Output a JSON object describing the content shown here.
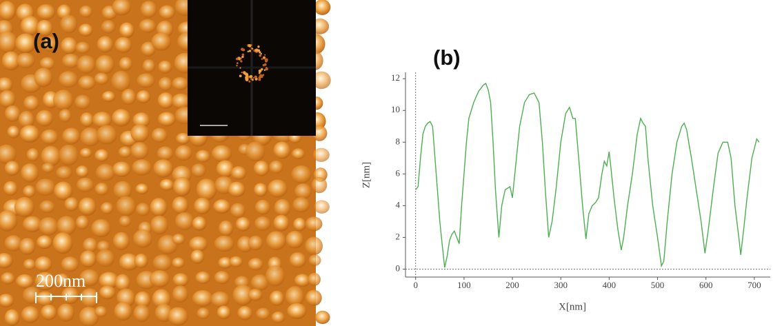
{
  "panels": {
    "a": "(a)",
    "b": "(b)",
    "scale_bar": "200nm"
  },
  "chart_data": {
    "type": "line",
    "x_label": "X[nm]",
    "y_label": "Z[nm]",
    "x": [
      0,
      5,
      10,
      15,
      20,
      25,
      30,
      35,
      40,
      45,
      50,
      55,
      60,
      65,
      70,
      75,
      80,
      85,
      90,
      95,
      100,
      105,
      110,
      120,
      130,
      140,
      145,
      150,
      155,
      160,
      165,
      172,
      178,
      185,
      195,
      200,
      205,
      215,
      225,
      235,
      245,
      255,
      262,
      268,
      275,
      282,
      290,
      300,
      310,
      318,
      325,
      330,
      337,
      345,
      352,
      358,
      365,
      372,
      378,
      385,
      390,
      395,
      400,
      405,
      410,
      418,
      425,
      430,
      438,
      448,
      458,
      465,
      470,
      475,
      480,
      490,
      500,
      508,
      513,
      520,
      530,
      540,
      550,
      555,
      560,
      570,
      580,
      590,
      598,
      605,
      615,
      625,
      635,
      645,
      652,
      660,
      668,
      672,
      678,
      685,
      695,
      705,
      710
    ],
    "series": [
      {
        "color": "#4caf50",
        "values": [
          5,
          5.2,
          7,
          8.5,
          9,
          9.2,
          9.3,
          9,
          7,
          5,
          3,
          1.5,
          0.1,
          0.8,
          1.8,
          2.2,
          2.4,
          2,
          1.6,
          4,
          6,
          8,
          9.5,
          10.5,
          11.2,
          11.6,
          11.7,
          11.3,
          10.5,
          8,
          5,
          2,
          4,
          5,
          5.2,
          4.5,
          6,
          9,
          10.5,
          11,
          11.1,
          10.5,
          8,
          5,
          2,
          3,
          5,
          8,
          9.8,
          10.2,
          9.5,
          9.5,
          7,
          4,
          1.9,
          3.5,
          4,
          4.2,
          4.5,
          6,
          6.8,
          6.5,
          7.4,
          6,
          4.5,
          2.5,
          1.2,
          2,
          4,
          6,
          8.5,
          9.5,
          9.2,
          9,
          7,
          4,
          2,
          0.2,
          0.5,
          3,
          6,
          8,
          9,
          9.2,
          8.8,
          7,
          5,
          3,
          1,
          2.5,
          5,
          7.3,
          8,
          8,
          7,
          4,
          2,
          0.9,
          2.5,
          4.5,
          7,
          8.2,
          8
        ]
      }
    ],
    "xlim": [
      -21,
      733
    ],
    "ylim": [
      -0.5,
      12.4
    ],
    "xticks": [
      0,
      100,
      200,
      300,
      400,
      500,
      600,
      700
    ],
    "yticks": [
      0,
      2,
      4,
      6,
      8,
      10,
      12
    ],
    "reference_x": 0,
    "reference_y": 0
  }
}
